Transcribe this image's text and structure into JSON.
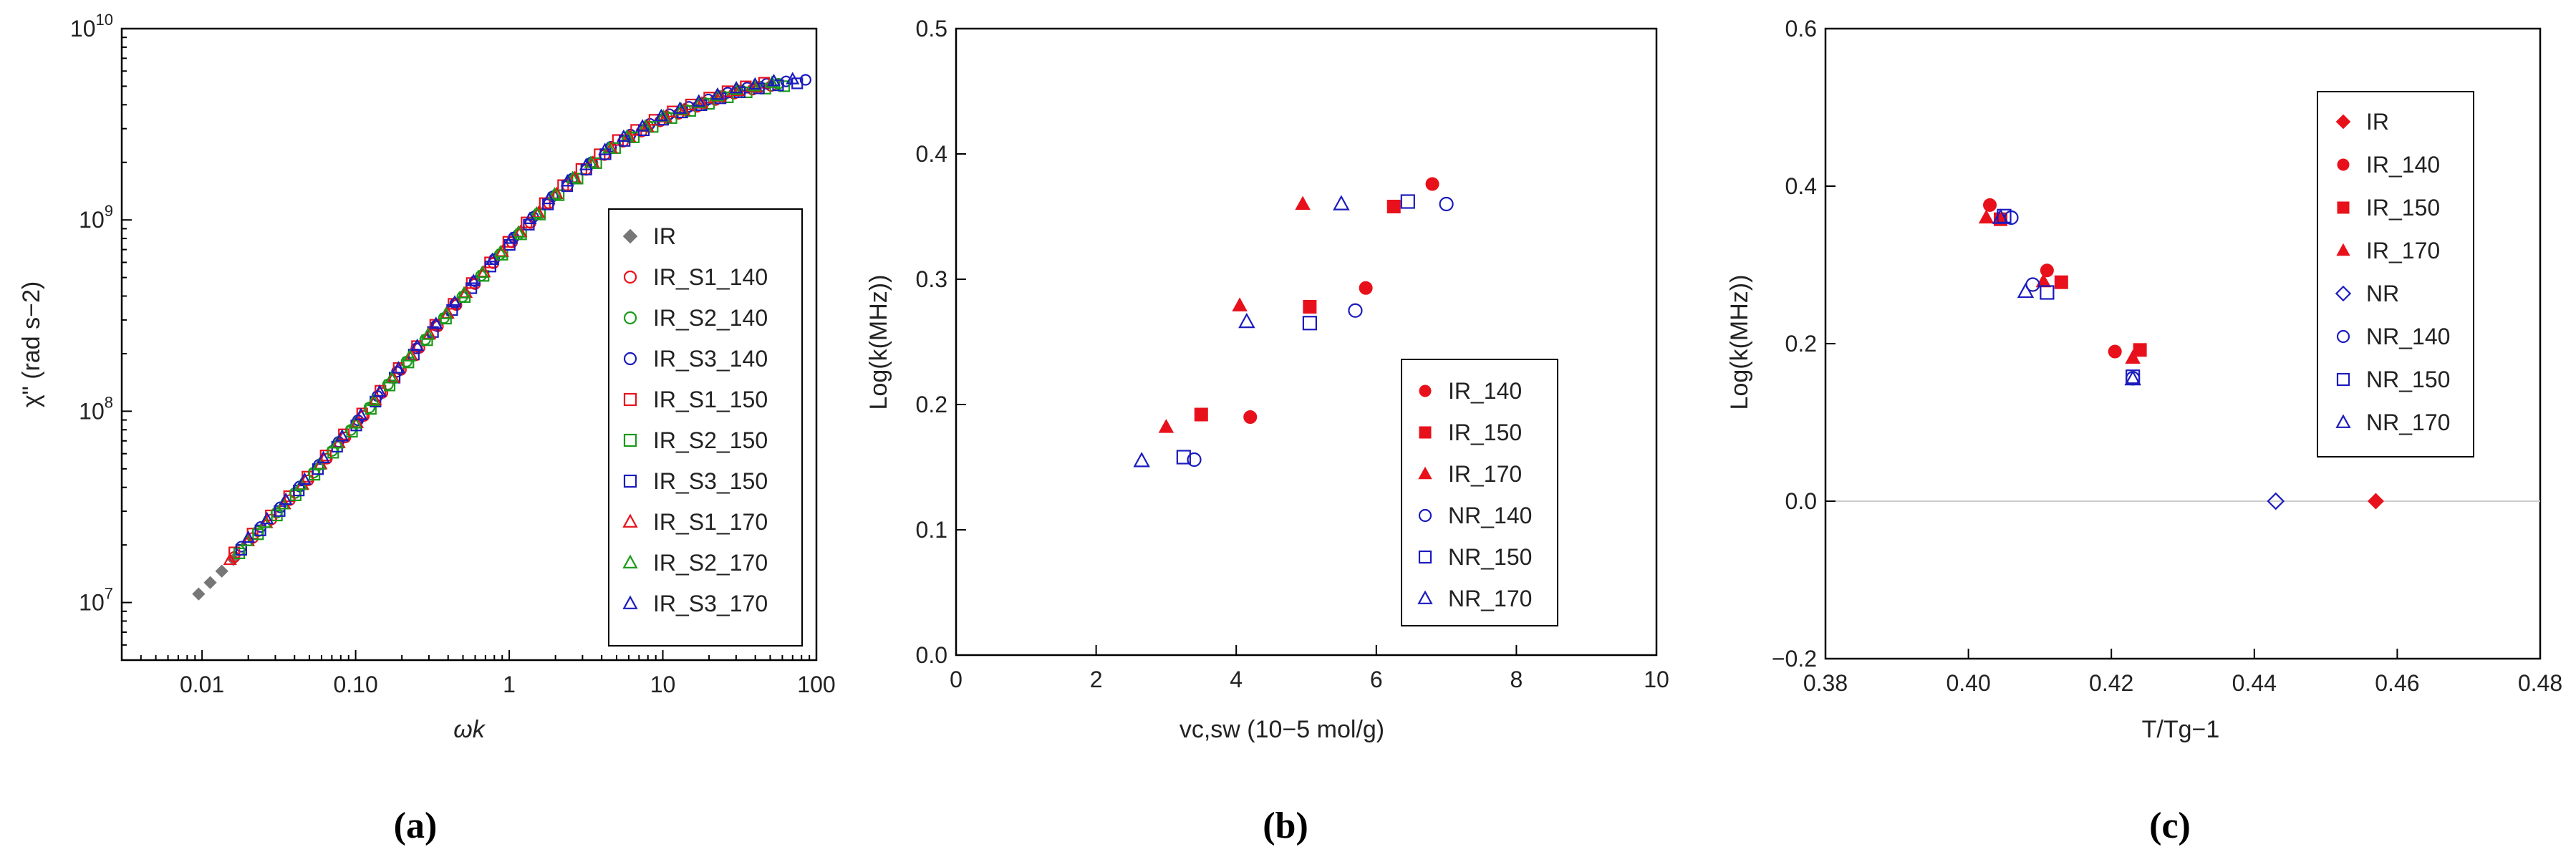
{
  "colors": {
    "red": "#e8111b",
    "blue": "#1b1bbf",
    "green": "#1a9a1a",
    "gray": "#777777",
    "zero_line": "#cccccc"
  },
  "chart_data": [
    {
      "id": "a",
      "type": "scatter",
      "caption": "(a)",
      "xscale": "log",
      "yscale": "log",
      "xlabel": "ωk",
      "ylabel": "χ\" (rad s−2)",
      "xlim": [
        0.003,
        100
      ],
      "ylim": [
        5000000,
        10000000000
      ],
      "xticks": [
        {
          "v": 0.01,
          "label": "0.01"
        },
        {
          "v": 0.1,
          "label": "0.10"
        },
        {
          "v": 1,
          "label": "1"
        },
        {
          "v": 10,
          "label": "10"
        },
        {
          "v": 100,
          "label": "100"
        }
      ],
      "yticks": [
        {
          "v": 10000000,
          "base": "10",
          "exp": "7"
        },
        {
          "v": 100000000,
          "base": "10",
          "exp": "8"
        },
        {
          "v": 1000000000,
          "base": "10",
          "exp": "9"
        },
        {
          "v": 10000000000,
          "base": "10",
          "exp": "10"
        }
      ],
      "curve": {
        "x": [
          0.0095,
          0.015,
          0.02,
          0.03,
          0.05,
          0.08,
          0.1,
          0.2,
          0.3,
          0.5,
          1,
          2,
          3,
          5,
          10,
          20,
          30,
          50,
          80
        ],
        "y": [
          11500000,
          16500000,
          21000000,
          29000000,
          45000000,
          70000000,
          85000000,
          170000000,
          250000000,
          400000000,
          750000000,
          1350000000,
          1800000000,
          2500000000,
          3400000000,
          4200000000,
          4700000000,
          5100000000,
          5300000000
        ]
      },
      "series": [
        {
          "name": "IR",
          "marker": "diamond-filled",
          "color": "gray",
          "x_start": 0.0095,
          "x_end": 0.016
        },
        {
          "name": "IR_S1_140",
          "marker": "circle-open",
          "color": "red",
          "x_start": 0.016,
          "x_end": 50
        },
        {
          "name": "IR_S2_140",
          "marker": "circle-open",
          "color": "green",
          "x_start": 0.017,
          "x_end": 55
        },
        {
          "name": "IR_S3_140",
          "marker": "circle-open",
          "color": "blue",
          "x_start": 0.018,
          "x_end": 85
        },
        {
          "name": "IR_S1_150",
          "marker": "square-open",
          "color": "red",
          "x_start": 0.016,
          "x_end": 45
        },
        {
          "name": "IR_S2_150",
          "marker": "square-open",
          "color": "green",
          "x_start": 0.017,
          "x_end": 60
        },
        {
          "name": "IR_S3_150",
          "marker": "square-open",
          "color": "blue",
          "x_start": 0.018,
          "x_end": 75
        },
        {
          "name": "IR_S1_170",
          "marker": "triangle-open",
          "color": "red",
          "x_start": 0.015,
          "x_end": 40
        },
        {
          "name": "IR_S2_170",
          "marker": "triangle-open",
          "color": "green",
          "x_start": 0.019,
          "x_end": 50
        },
        {
          "name": "IR_S3_170",
          "marker": "triangle-open",
          "color": "blue",
          "x_start": 0.02,
          "x_end": 70
        }
      ],
      "legend_position": "bottom-right"
    },
    {
      "id": "b",
      "type": "scatter",
      "caption": "(b)",
      "xlabel": "vc,sw (10−5 mol/g)",
      "ylabel": "Log(k(MHz))",
      "xlim": [
        0,
        10
      ],
      "ylim": [
        0,
        0.5
      ],
      "xticks": [
        {
          "v": 0,
          "label": "0"
        },
        {
          "v": 2,
          "label": "2"
        },
        {
          "v": 4,
          "label": "4"
        },
        {
          "v": 6,
          "label": "6"
        },
        {
          "v": 8,
          "label": "8"
        },
        {
          "v": 10,
          "label": "10"
        }
      ],
      "yticks": [
        {
          "v": 0,
          "label": "0.0"
        },
        {
          "v": 0.1,
          "label": "0.1"
        },
        {
          "v": 0.2,
          "label": "0.2"
        },
        {
          "v": 0.3,
          "label": "0.3"
        },
        {
          "v": 0.4,
          "label": "0.4"
        },
        {
          "v": 0.5,
          "label": "0.5"
        }
      ],
      "series": [
        {
          "name": "IR_140",
          "marker": "circle-filled",
          "color": "red",
          "points": [
            [
              4.2,
              0.19
            ],
            [
              5.85,
              0.293
            ],
            [
              6.8,
              0.376
            ]
          ]
        },
        {
          "name": "IR_150",
          "marker": "square-filled",
          "color": "red",
          "points": [
            [
              3.5,
              0.192
            ],
            [
              5.05,
              0.278
            ],
            [
              6.25,
              0.358
            ]
          ]
        },
        {
          "name": "IR_170",
          "marker": "triangle-filled",
          "color": "red",
          "points": [
            [
              3.0,
              0.182
            ],
            [
              4.05,
              0.279
            ],
            [
              4.95,
              0.36
            ]
          ]
        },
        {
          "name": "NR_140",
          "marker": "circle-open",
          "color": "blue",
          "points": [
            [
              3.4,
              0.156
            ],
            [
              5.7,
              0.275
            ],
            [
              7.0,
              0.36
            ]
          ]
        },
        {
          "name": "NR_150",
          "marker": "square-open",
          "color": "blue",
          "points": [
            [
              3.25,
              0.158
            ],
            [
              5.05,
              0.265
            ],
            [
              6.45,
              0.362
            ]
          ]
        },
        {
          "name": "NR_170",
          "marker": "triangle-open",
          "color": "blue",
          "points": [
            [
              2.65,
              0.155
            ],
            [
              4.15,
              0.266
            ],
            [
              5.5,
              0.36
            ]
          ]
        }
      ],
      "legend_position": "bottom-right"
    },
    {
      "id": "c",
      "type": "scatter",
      "caption": "(c)",
      "xlabel": "T/Tg−1",
      "ylabel": "Log(k(MHz))",
      "xlim": [
        0.38,
        0.48
      ],
      "ylim": [
        -0.2,
        0.6
      ],
      "zero_line": true,
      "xticks": [
        {
          "v": 0.38,
          "label": "0.38"
        },
        {
          "v": 0.4,
          "label": "0.40"
        },
        {
          "v": 0.42,
          "label": "0.42"
        },
        {
          "v": 0.44,
          "label": "0.44"
        },
        {
          "v": 0.46,
          "label": "0.46"
        },
        {
          "v": 0.48,
          "label": "0.48"
        }
      ],
      "yticks": [
        {
          "v": -0.2,
          "label": "−0.2"
        },
        {
          "v": 0,
          "label": "0.0"
        },
        {
          "v": 0.2,
          "label": "0.2"
        },
        {
          "v": 0.4,
          "label": "0.4"
        },
        {
          "v": 0.6,
          "label": "0.6"
        }
      ],
      "series": [
        {
          "name": "IR",
          "marker": "diamond-filled",
          "color": "red",
          "points": [
            [
              0.457,
              0.0
            ]
          ]
        },
        {
          "name": "IR_140",
          "marker": "circle-filled",
          "color": "red",
          "points": [
            [
              0.403,
              0.376
            ],
            [
              0.411,
              0.293
            ],
            [
              0.4205,
              0.19
            ]
          ]
        },
        {
          "name": "IR_150",
          "marker": "square-filled",
          "color": "red",
          "points": [
            [
              0.4045,
              0.358
            ],
            [
              0.413,
              0.278
            ],
            [
              0.424,
              0.192
            ]
          ]
        },
        {
          "name": "IR_170",
          "marker": "triangle-filled",
          "color": "red",
          "points": [
            [
              0.4025,
              0.36
            ],
            [
              0.4105,
              0.279
            ],
            [
              0.423,
              0.182
            ]
          ]
        },
        {
          "name": "NR",
          "marker": "diamond-open",
          "color": "blue",
          "points": [
            [
              0.443,
              0.0
            ]
          ]
        },
        {
          "name": "NR_140",
          "marker": "circle-open",
          "color": "blue",
          "points": [
            [
              0.406,
              0.36
            ],
            [
              0.409,
              0.275
            ],
            [
              0.423,
              0.156
            ]
          ]
        },
        {
          "name": "NR_150",
          "marker": "square-open",
          "color": "blue",
          "points": [
            [
              0.405,
              0.362
            ],
            [
              0.411,
              0.265
            ],
            [
              0.423,
              0.158
            ]
          ]
        },
        {
          "name": "NR_170",
          "marker": "triangle-open",
          "color": "blue",
          "points": [
            [
              0.4045,
              0.36
            ],
            [
              0.408,
              0.266
            ],
            [
              0.423,
              0.155
            ]
          ]
        }
      ],
      "legend_position": "top-right"
    }
  ]
}
